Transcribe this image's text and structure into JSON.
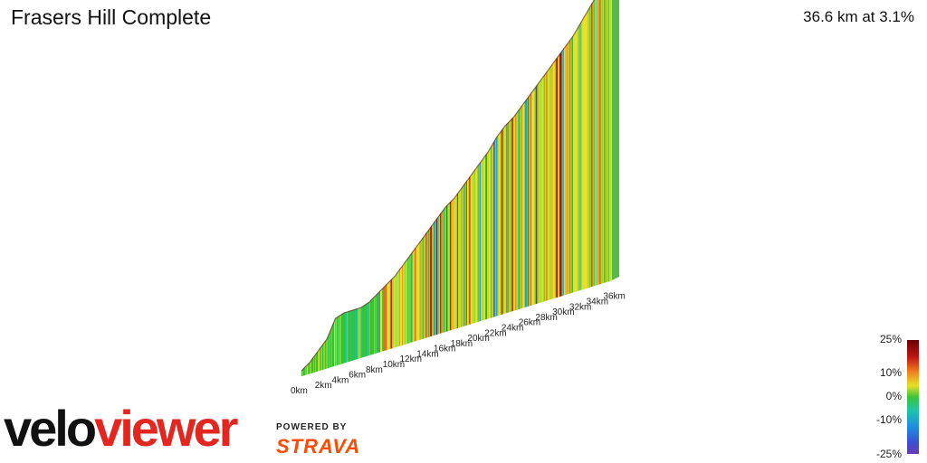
{
  "header": {
    "title": "Frasers Hill Complete",
    "stats": "36.6 km at 3.1%"
  },
  "legend": {
    "labels": [
      "25%",
      "10%",
      "0%",
      "-10%",
      "-25%"
    ],
    "colors": [
      "#6b0000",
      "#d21b1b",
      "#f08a1d",
      "#e6e02a",
      "#9bd62a",
      "#2ec43a",
      "#1fc4a8",
      "#1e9be0",
      "#3a4fd1",
      "#6a3bb5"
    ]
  },
  "branding": {
    "logo_part1": "velo",
    "logo_part2": "viewer",
    "powered_by": "POWERED BY",
    "strava": "STRAVA"
  },
  "chart_data": {
    "type": "area",
    "title": "Frasers Hill Complete",
    "xlabel": "",
    "ylabel": "",
    "x_unit": "km",
    "x_ticks": [
      "0km",
      "2km",
      "4km",
      "6km",
      "8km",
      "10km",
      "12km",
      "14km",
      "16km",
      "18km",
      "20km",
      "22km",
      "24km",
      "26km",
      "28km",
      "30km",
      "32km",
      "34km",
      "36km"
    ],
    "distance_km": 36.6,
    "average_gradient_pct": 3.1,
    "profile": [
      {
        "km": 0,
        "rel_elev": 0.0
      },
      {
        "km": 1,
        "rel_elev": 0.02
      },
      {
        "km": 2,
        "rel_elev": 0.05
      },
      {
        "km": 3,
        "rel_elev": 0.08
      },
      {
        "km": 4,
        "rel_elev": 0.14
      },
      {
        "km": 5,
        "rel_elev": 0.15
      },
      {
        "km": 6,
        "rel_elev": 0.15
      },
      {
        "km": 7,
        "rel_elev": 0.15
      },
      {
        "km": 8,
        "rel_elev": 0.16
      },
      {
        "km": 9,
        "rel_elev": 0.18
      },
      {
        "km": 10,
        "rel_elev": 0.2
      },
      {
        "km": 11,
        "rel_elev": 0.22
      },
      {
        "km": 12,
        "rel_elev": 0.25
      },
      {
        "km": 13,
        "rel_elev": 0.28
      },
      {
        "km": 14,
        "rel_elev": 0.31
      },
      {
        "km": 15,
        "rel_elev": 0.34
      },
      {
        "km": 16,
        "rel_elev": 0.37
      },
      {
        "km": 17,
        "rel_elev": 0.4
      },
      {
        "km": 18,
        "rel_elev": 0.42
      },
      {
        "km": 19,
        "rel_elev": 0.45
      },
      {
        "km": 20,
        "rel_elev": 0.48
      },
      {
        "km": 21,
        "rel_elev": 0.51
      },
      {
        "km": 22,
        "rel_elev": 0.54
      },
      {
        "km": 23,
        "rel_elev": 0.58
      },
      {
        "km": 24,
        "rel_elev": 0.61
      },
      {
        "km": 25,
        "rel_elev": 0.63
      },
      {
        "km": 26,
        "rel_elev": 0.66
      },
      {
        "km": 27,
        "rel_elev": 0.69
      },
      {
        "km": 28,
        "rel_elev": 0.72
      },
      {
        "km": 29,
        "rel_elev": 0.75
      },
      {
        "km": 30,
        "rel_elev": 0.78
      },
      {
        "km": 31,
        "rel_elev": 0.81
      },
      {
        "km": 32,
        "rel_elev": 0.84
      },
      {
        "km": 33,
        "rel_elev": 0.88
      },
      {
        "km": 34,
        "rel_elev": 0.92
      },
      {
        "km": 35,
        "rel_elev": 0.96
      },
      {
        "km": 36,
        "rel_elev": 0.99
      },
      {
        "km": 36.6,
        "rel_elev": 1.0
      }
    ]
  }
}
